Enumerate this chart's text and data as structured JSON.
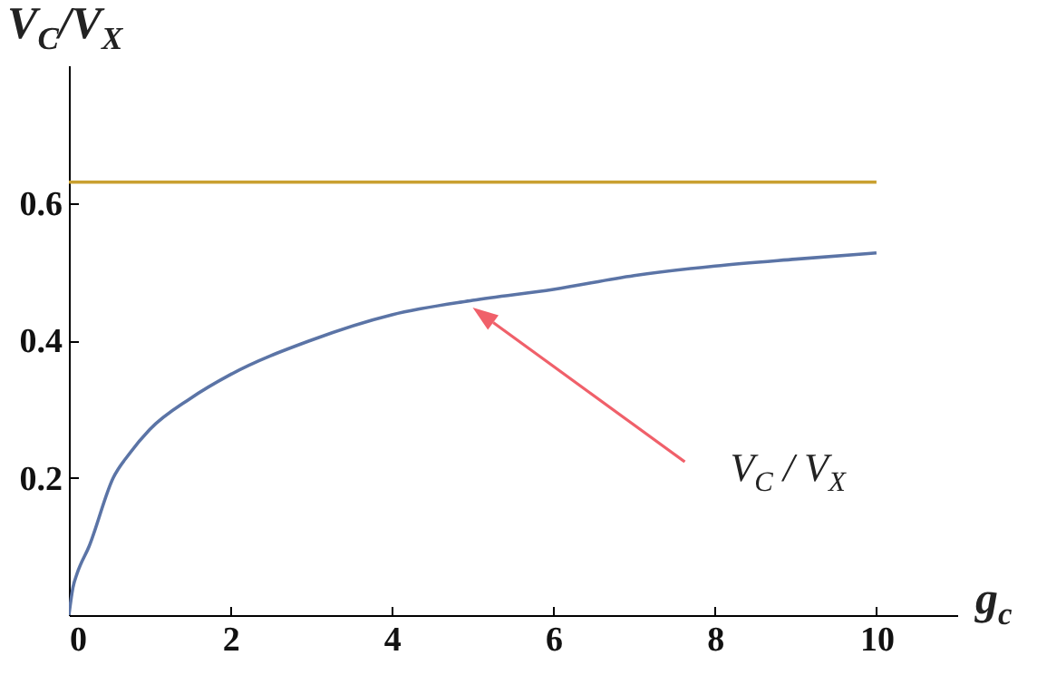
{
  "chart_data": {
    "type": "line",
    "xlabel": "g$_{c}$",
    "ylabel": "V$_{C}$/V$_{X}$",
    "xlim": [
      0,
      11
    ],
    "ylim": [
      0,
      0.8
    ],
    "xticks": [
      0,
      2,
      4,
      6,
      8,
      10
    ],
    "yticks": [
      0.2,
      0.4,
      0.6
    ],
    "grid": false,
    "series": [
      {
        "color": "#5b74a6",
        "x": [
          0,
          0.05,
          0.1,
          0.25,
          0.55,
          0.75,
          1,
          1.5,
          2,
          3,
          4,
          5,
          6,
          7,
          8,
          9,
          10
        ],
        "values": [
          0,
          0.04,
          0.06,
          0.1,
          0.2,
          0.235,
          0.27,
          0.315,
          0.35,
          0.4,
          0.437,
          0.458,
          0.474,
          0.494,
          0.508,
          0.518,
          0.527
        ]
      },
      {
        "color": "#c9a030",
        "x": [
          0,
          10
        ],
        "values": [
          0.63,
          0.63
        ]
      }
    ],
    "annotations": [
      "V$_{C}$ / V$_{X}$"
    ]
  }
}
